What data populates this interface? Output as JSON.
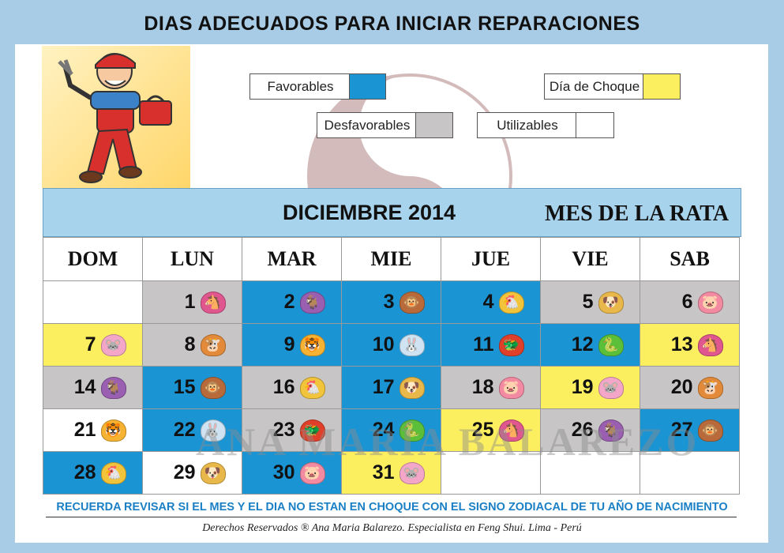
{
  "title": "DIAS ADECUADOS PARA INICIAR REPARACIONES",
  "legend": [
    {
      "label": "Favorables",
      "color": "#1a94d3"
    },
    {
      "label": "Día de Choque",
      "color": "#fbef60"
    },
    {
      "label": "Desfavorables",
      "color": "#c7c5c5"
    },
    {
      "label": "Utilizables",
      "color": "#ffffff"
    }
  ],
  "calendar": {
    "month": "DICIEMBRE 2014",
    "subtitle": "MES DE LA RATA",
    "weekdays": [
      "DOM",
      "LUN",
      "MAR",
      "MIE",
      "JUE",
      "VIE",
      "SAB"
    ],
    "weeks": [
      [
        null,
        {
          "day": "1",
          "status": "des",
          "animal": "horse-icon"
        },
        {
          "day": "2",
          "status": "fav",
          "animal": "goat-icon"
        },
        {
          "day": "3",
          "status": "fav",
          "animal": "monkey-icon"
        },
        {
          "day": "4",
          "status": "fav",
          "animal": "rooster-icon"
        },
        {
          "day": "5",
          "status": "des",
          "animal": "dog-icon"
        },
        {
          "day": "6",
          "status": "des",
          "animal": "pig-icon"
        }
      ],
      [
        {
          "day": "7",
          "status": "cho",
          "animal": "rat-icon"
        },
        {
          "day": "8",
          "status": "des",
          "animal": "ox-icon"
        },
        {
          "day": "9",
          "status": "fav",
          "animal": "tiger-icon"
        },
        {
          "day": "10",
          "status": "fav",
          "animal": "rabbit-icon"
        },
        {
          "day": "11",
          "status": "fav",
          "animal": "dragon-icon"
        },
        {
          "day": "12",
          "status": "fav",
          "animal": "snake-icon"
        },
        {
          "day": "13",
          "status": "cho",
          "animal": "horse-icon"
        }
      ],
      [
        {
          "day": "14",
          "status": "des",
          "animal": "goat-icon"
        },
        {
          "day": "15",
          "status": "fav",
          "animal": "monkey-icon"
        },
        {
          "day": "16",
          "status": "des",
          "animal": "rooster-icon"
        },
        {
          "day": "17",
          "status": "fav",
          "animal": "dog-icon"
        },
        {
          "day": "18",
          "status": "des",
          "animal": "pig-icon"
        },
        {
          "day": "19",
          "status": "cho",
          "animal": "rat-icon"
        },
        {
          "day": "20",
          "status": "des",
          "animal": "ox-icon"
        }
      ],
      [
        {
          "day": "21",
          "status": "uti",
          "animal": "tiger-icon"
        },
        {
          "day": "22",
          "status": "fav",
          "animal": "rabbit-icon"
        },
        {
          "day": "23",
          "status": "des",
          "animal": "dragon-icon"
        },
        {
          "day": "24",
          "status": "fav",
          "animal": "snake-icon"
        },
        {
          "day": "25",
          "status": "cho",
          "animal": "horse-icon"
        },
        {
          "day": "26",
          "status": "des",
          "animal": "goat-icon"
        },
        {
          "day": "27",
          "status": "fav",
          "animal": "monkey-icon"
        }
      ],
      [
        {
          "day": "28",
          "status": "fav",
          "animal": "rooster-icon"
        },
        {
          "day": "29",
          "status": "uti",
          "animal": "dog-icon"
        },
        {
          "day": "30",
          "status": "fav",
          "animal": "pig-icon"
        },
        {
          "day": "31",
          "status": "cho",
          "animal": "rat-icon"
        },
        null,
        null,
        null
      ]
    ]
  },
  "watermark": "ANA MARÍA BALAREZO",
  "reminder": "RECUERDA REVISAR SI EL MES Y EL DIA NO ESTAN EN CHOQUE CON EL SIGNO ZODIACAL DE TU AÑO DE NACIMIENTO",
  "copyright": "Derechos Reservados ® Ana Maria Balarezo. Especialista en Feng Shui. Lima - Perú"
}
